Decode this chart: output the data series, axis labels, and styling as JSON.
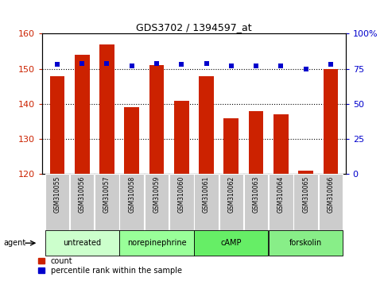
{
  "title": "GDS3702 / 1394597_at",
  "samples": [
    "GSM310055",
    "GSM310056",
    "GSM310057",
    "GSM310058",
    "GSM310059",
    "GSM310060",
    "GSM310061",
    "GSM310062",
    "GSM310063",
    "GSM310064",
    "GSM310065",
    "GSM310066"
  ],
  "counts": [
    148,
    154,
    157,
    139,
    151,
    141,
    148,
    136,
    138,
    137,
    121,
    150
  ],
  "percentile_ranks": [
    78,
    79,
    79,
    77,
    79,
    78,
    79,
    77,
    77,
    77,
    75,
    78
  ],
  "ylim_left": [
    120,
    160
  ],
  "ylim_right": [
    0,
    100
  ],
  "yticks_left": [
    120,
    130,
    140,
    150,
    160
  ],
  "yticks_right": [
    0,
    25,
    50,
    75,
    100
  ],
  "ytick_labels_right": [
    "0",
    "25",
    "50",
    "75",
    "100%"
  ],
  "bar_color": "#cc2200",
  "dot_color": "#0000cc",
  "groups": [
    {
      "label": "untreated",
      "start": 0,
      "end": 2,
      "color": "#ccffcc"
    },
    {
      "label": "norepinephrine",
      "start": 3,
      "end": 5,
      "color": "#99ff99"
    },
    {
      "label": "cAMP",
      "start": 6,
      "end": 8,
      "color": "#66ee66"
    },
    {
      "label": "forskolin",
      "start": 9,
      "end": 11,
      "color": "#88ee88"
    }
  ],
  "tick_bg_color": "#cccccc",
  "agent_label": "agent",
  "legend_count_label": "count",
  "legend_pct_label": "percentile rank within the sample",
  "dotted_lines": [
    150,
    140,
    130
  ],
  "bar_width": 0.6
}
